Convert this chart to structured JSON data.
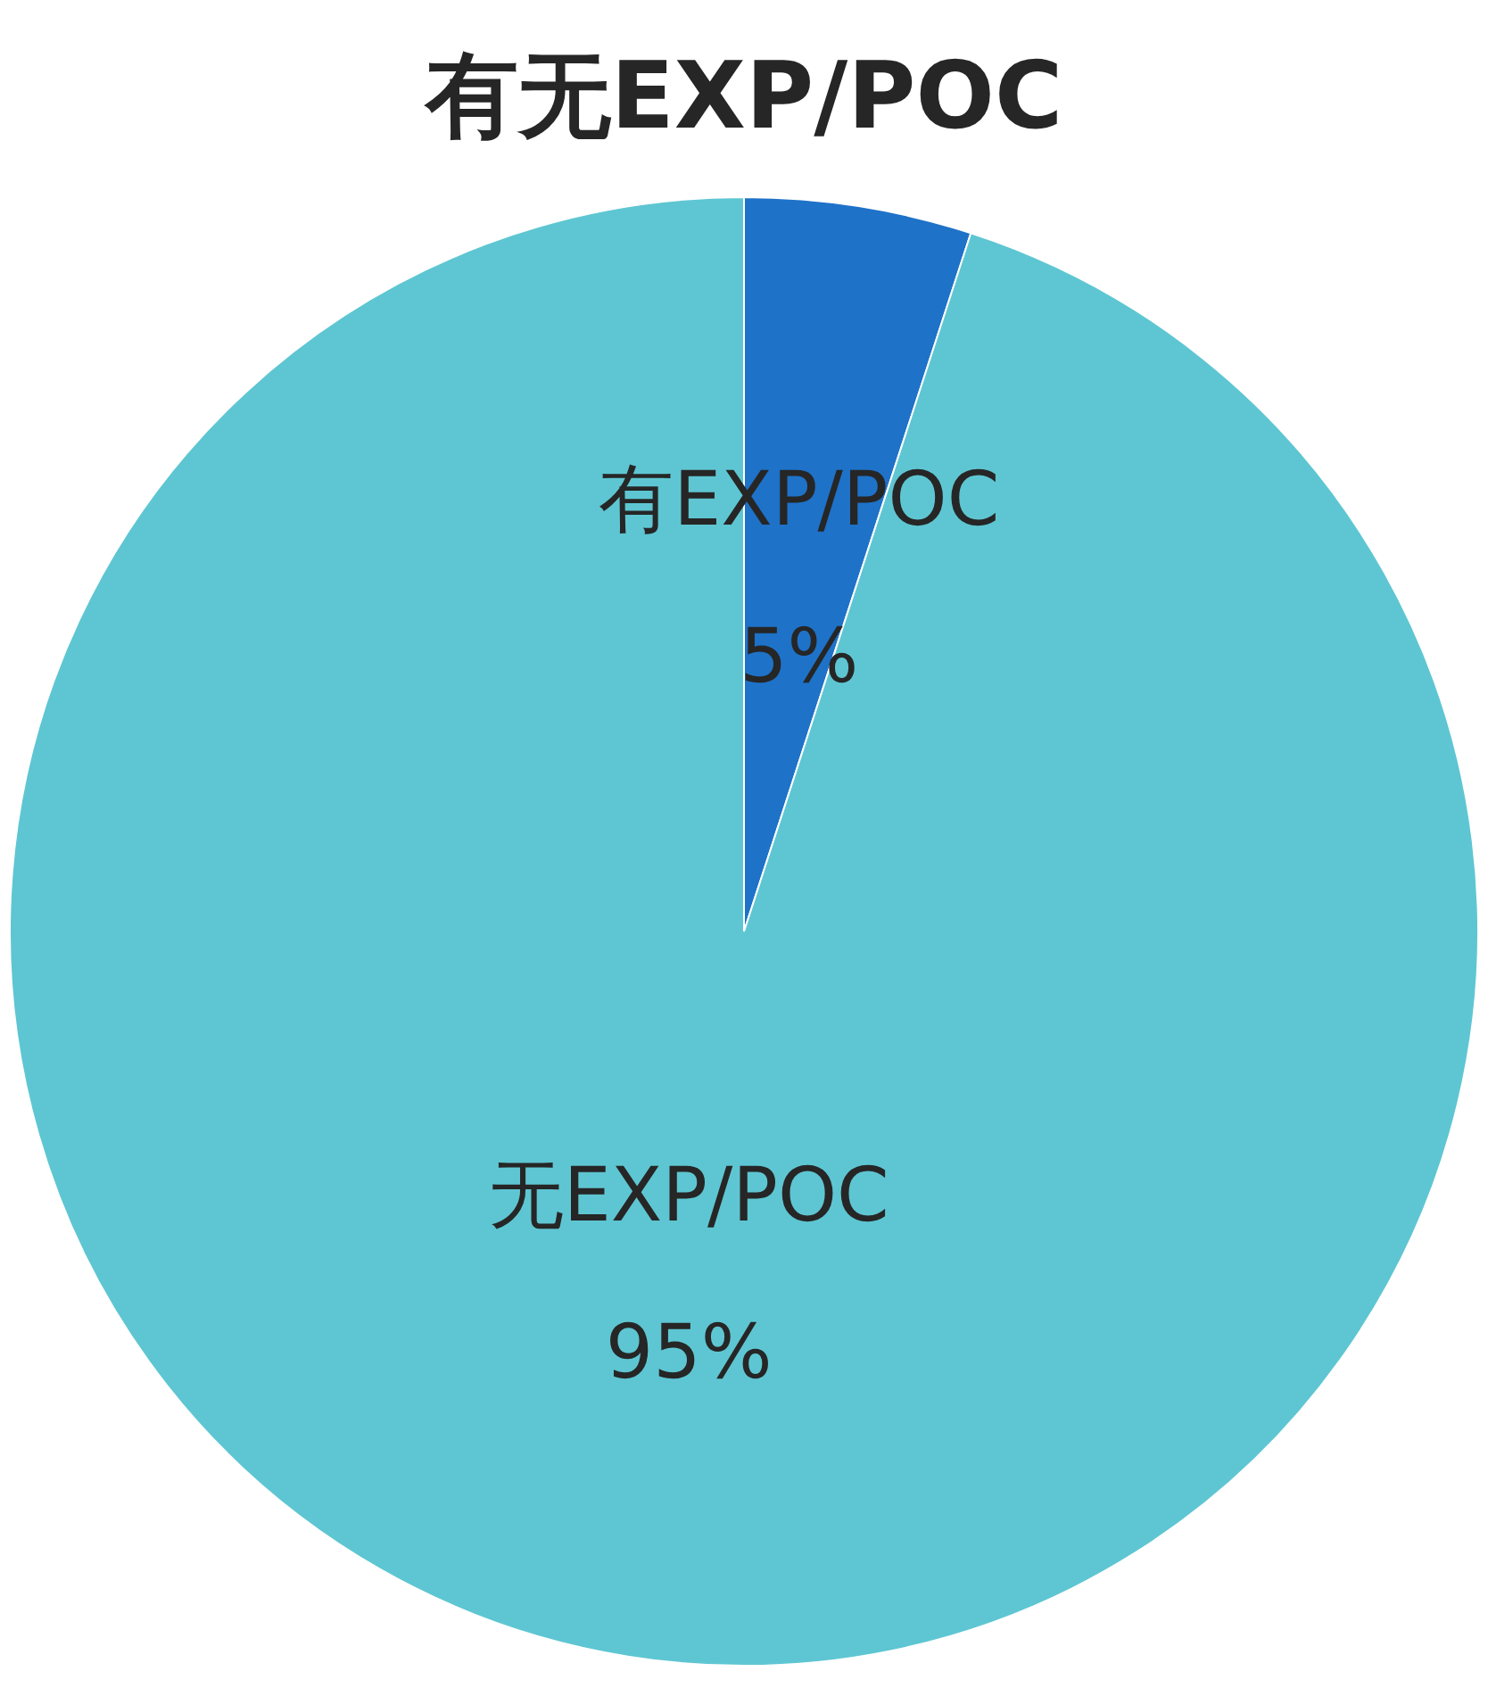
{
  "chart_data": {
    "type": "pie",
    "title": "有无EXP/POC",
    "categories": [
      "有EXP/POC",
      "无EXP/POC"
    ],
    "values": [
      5,
      95
    ],
    "colors": [
      "#1e72c8",
      "#5ec6d2"
    ],
    "value_labels": [
      "5%",
      "95%"
    ],
    "legend": false
  }
}
